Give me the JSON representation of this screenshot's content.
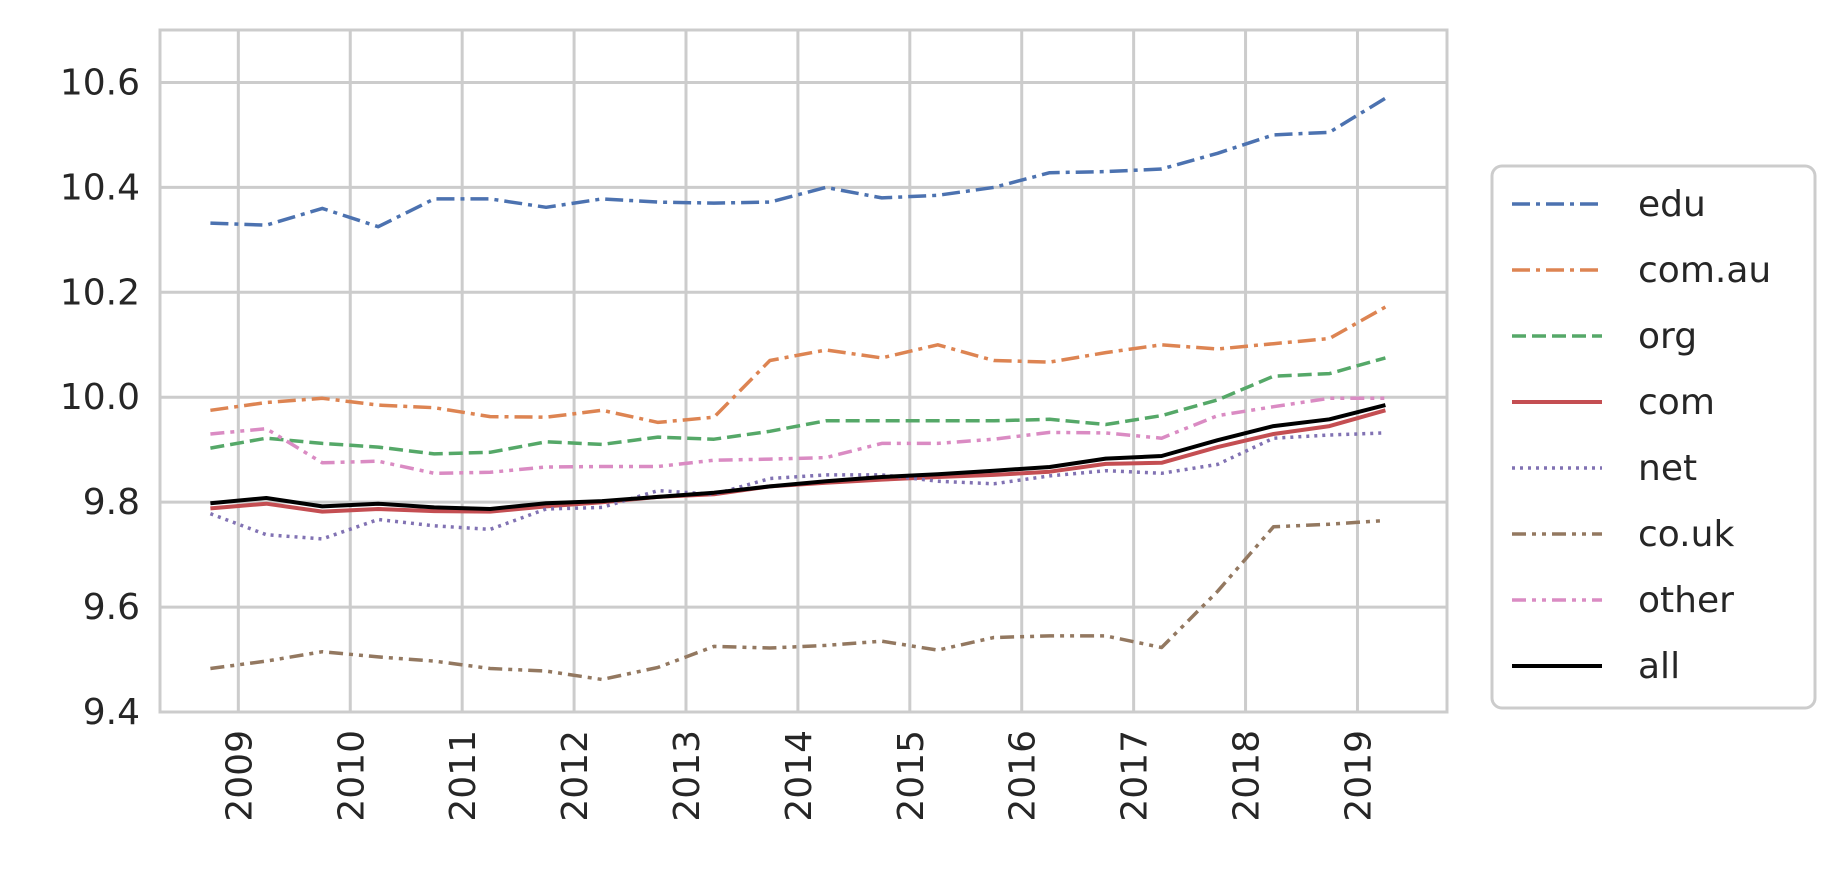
{
  "chart_data": {
    "type": "line",
    "title": "",
    "xlabel": "",
    "ylabel": "",
    "ylim": [
      9.4,
      10.7
    ],
    "xlim": [
      2008.3,
      2019.8
    ],
    "grid": true,
    "legend_position": "right",
    "y_ticks": [
      "9.4",
      "9.6",
      "9.8",
      "10.0",
      "10.2",
      "10.4",
      "10.6"
    ],
    "x_ticks": [
      "2009",
      "2010",
      "2011",
      "2012",
      "2013",
      "2014",
      "2015",
      "2016",
      "2017",
      "2018",
      "2019"
    ],
    "x": [
      2008.75,
      2009.25,
      2009.75,
      2010.25,
      2010.75,
      2011.25,
      2011.75,
      2012.25,
      2012.75,
      2013.25,
      2013.75,
      2014.25,
      2014.75,
      2015.25,
      2015.75,
      2016.25,
      2016.75,
      2017.25,
      2017.75,
      2018.25,
      2018.75,
      2019.25
    ],
    "series": [
      {
        "name": "edu",
        "color": "#4c72b0",
        "dash": "dashdot",
        "width": 3.5,
        "values": [
          10.332,
          10.328,
          10.36,
          10.325,
          10.378,
          10.378,
          10.362,
          10.378,
          10.372,
          10.37,
          10.372,
          10.4,
          10.38,
          10.385,
          10.4,
          10.428,
          10.43,
          10.435,
          10.465,
          10.5,
          10.505,
          10.57
        ]
      },
      {
        "name": "com.au",
        "color": "#dd8452",
        "dash": "dashdot",
        "width": 3.5,
        "values": [
          9.975,
          9.99,
          9.998,
          9.985,
          9.98,
          9.963,
          9.962,
          9.975,
          9.952,
          9.962,
          10.07,
          10.09,
          10.075,
          10.1,
          10.07,
          10.067,
          10.085,
          10.1,
          10.092,
          10.102,
          10.112,
          10.172
        ]
      },
      {
        "name": "org",
        "color": "#55a868",
        "dash": "dashed",
        "width": 3.5,
        "values": [
          9.903,
          9.922,
          9.912,
          9.905,
          9.892,
          9.895,
          9.915,
          9.91,
          9.924,
          9.92,
          9.935,
          9.955,
          9.955,
          9.955,
          9.955,
          9.958,
          9.948,
          9.965,
          9.995,
          10.04,
          10.045,
          10.075
        ]
      },
      {
        "name": "com",
        "color": "#c44e52",
        "dash": "solid",
        "width": 4,
        "values": [
          9.788,
          9.797,
          9.782,
          9.787,
          9.783,
          9.782,
          9.792,
          9.8,
          9.81,
          9.815,
          9.83,
          9.837,
          9.843,
          9.848,
          9.852,
          9.858,
          9.873,
          9.875,
          9.905,
          9.93,
          9.945,
          9.975
        ]
      },
      {
        "name": "net",
        "color": "#8172b3",
        "dash": "dotted",
        "width": 3.5,
        "values": [
          9.778,
          9.738,
          9.73,
          9.767,
          9.755,
          9.748,
          9.787,
          9.79,
          9.822,
          9.815,
          9.845,
          9.852,
          9.852,
          9.84,
          9.835,
          9.85,
          9.86,
          9.855,
          9.872,
          9.922,
          9.928,
          9.932
        ]
      },
      {
        "name": "co.uk",
        "color": "#937860",
        "dash": "dashdotdot",
        "width": 3.5,
        "values": [
          9.483,
          9.497,
          9.515,
          9.505,
          9.497,
          9.483,
          9.478,
          9.462,
          9.485,
          9.525,
          9.522,
          9.527,
          9.535,
          9.518,
          9.542,
          9.545,
          9.545,
          9.523,
          9.63,
          9.753,
          9.758,
          9.765
        ]
      },
      {
        "name": "other",
        "color": "#da8bc3",
        "dash": "dashdotdot",
        "width": 3.5,
        "values": [
          9.93,
          9.94,
          9.875,
          9.878,
          9.855,
          9.857,
          9.867,
          9.868,
          9.868,
          9.88,
          9.882,
          9.885,
          9.912,
          9.912,
          9.92,
          9.933,
          9.932,
          9.922,
          9.965,
          9.982,
          9.998,
          9.998
        ]
      },
      {
        "name": "all",
        "color": "#000000",
        "dash": "solid",
        "width": 4,
        "values": [
          9.798,
          9.808,
          9.792,
          9.797,
          9.79,
          9.787,
          9.798,
          9.802,
          9.81,
          9.818,
          9.83,
          9.84,
          9.848,
          9.853,
          9.86,
          9.867,
          9.883,
          9.888,
          9.918,
          9.945,
          9.958,
          9.985
        ]
      }
    ]
  }
}
